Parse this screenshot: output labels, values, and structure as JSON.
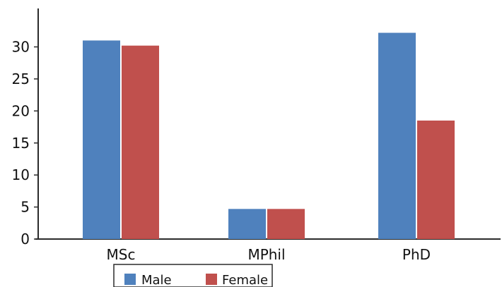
{
  "chart_data": {
    "type": "bar",
    "categories": [
      "MSc",
      "MPhil",
      "PhD"
    ],
    "series": [
      {
        "name": "Male",
        "values": [
          31,
          4.7,
          32.2
        ],
        "color": "#4f81bd"
      },
      {
        "name": "Female",
        "values": [
          30.2,
          4.7,
          18.5
        ],
        "color": "#c0504d"
      }
    ],
    "y_ticks": [
      0,
      5,
      10,
      15,
      20,
      25,
      30
    ],
    "ylim": [
      0,
      36
    ],
    "grid": false,
    "legend_position": "bottom"
  }
}
